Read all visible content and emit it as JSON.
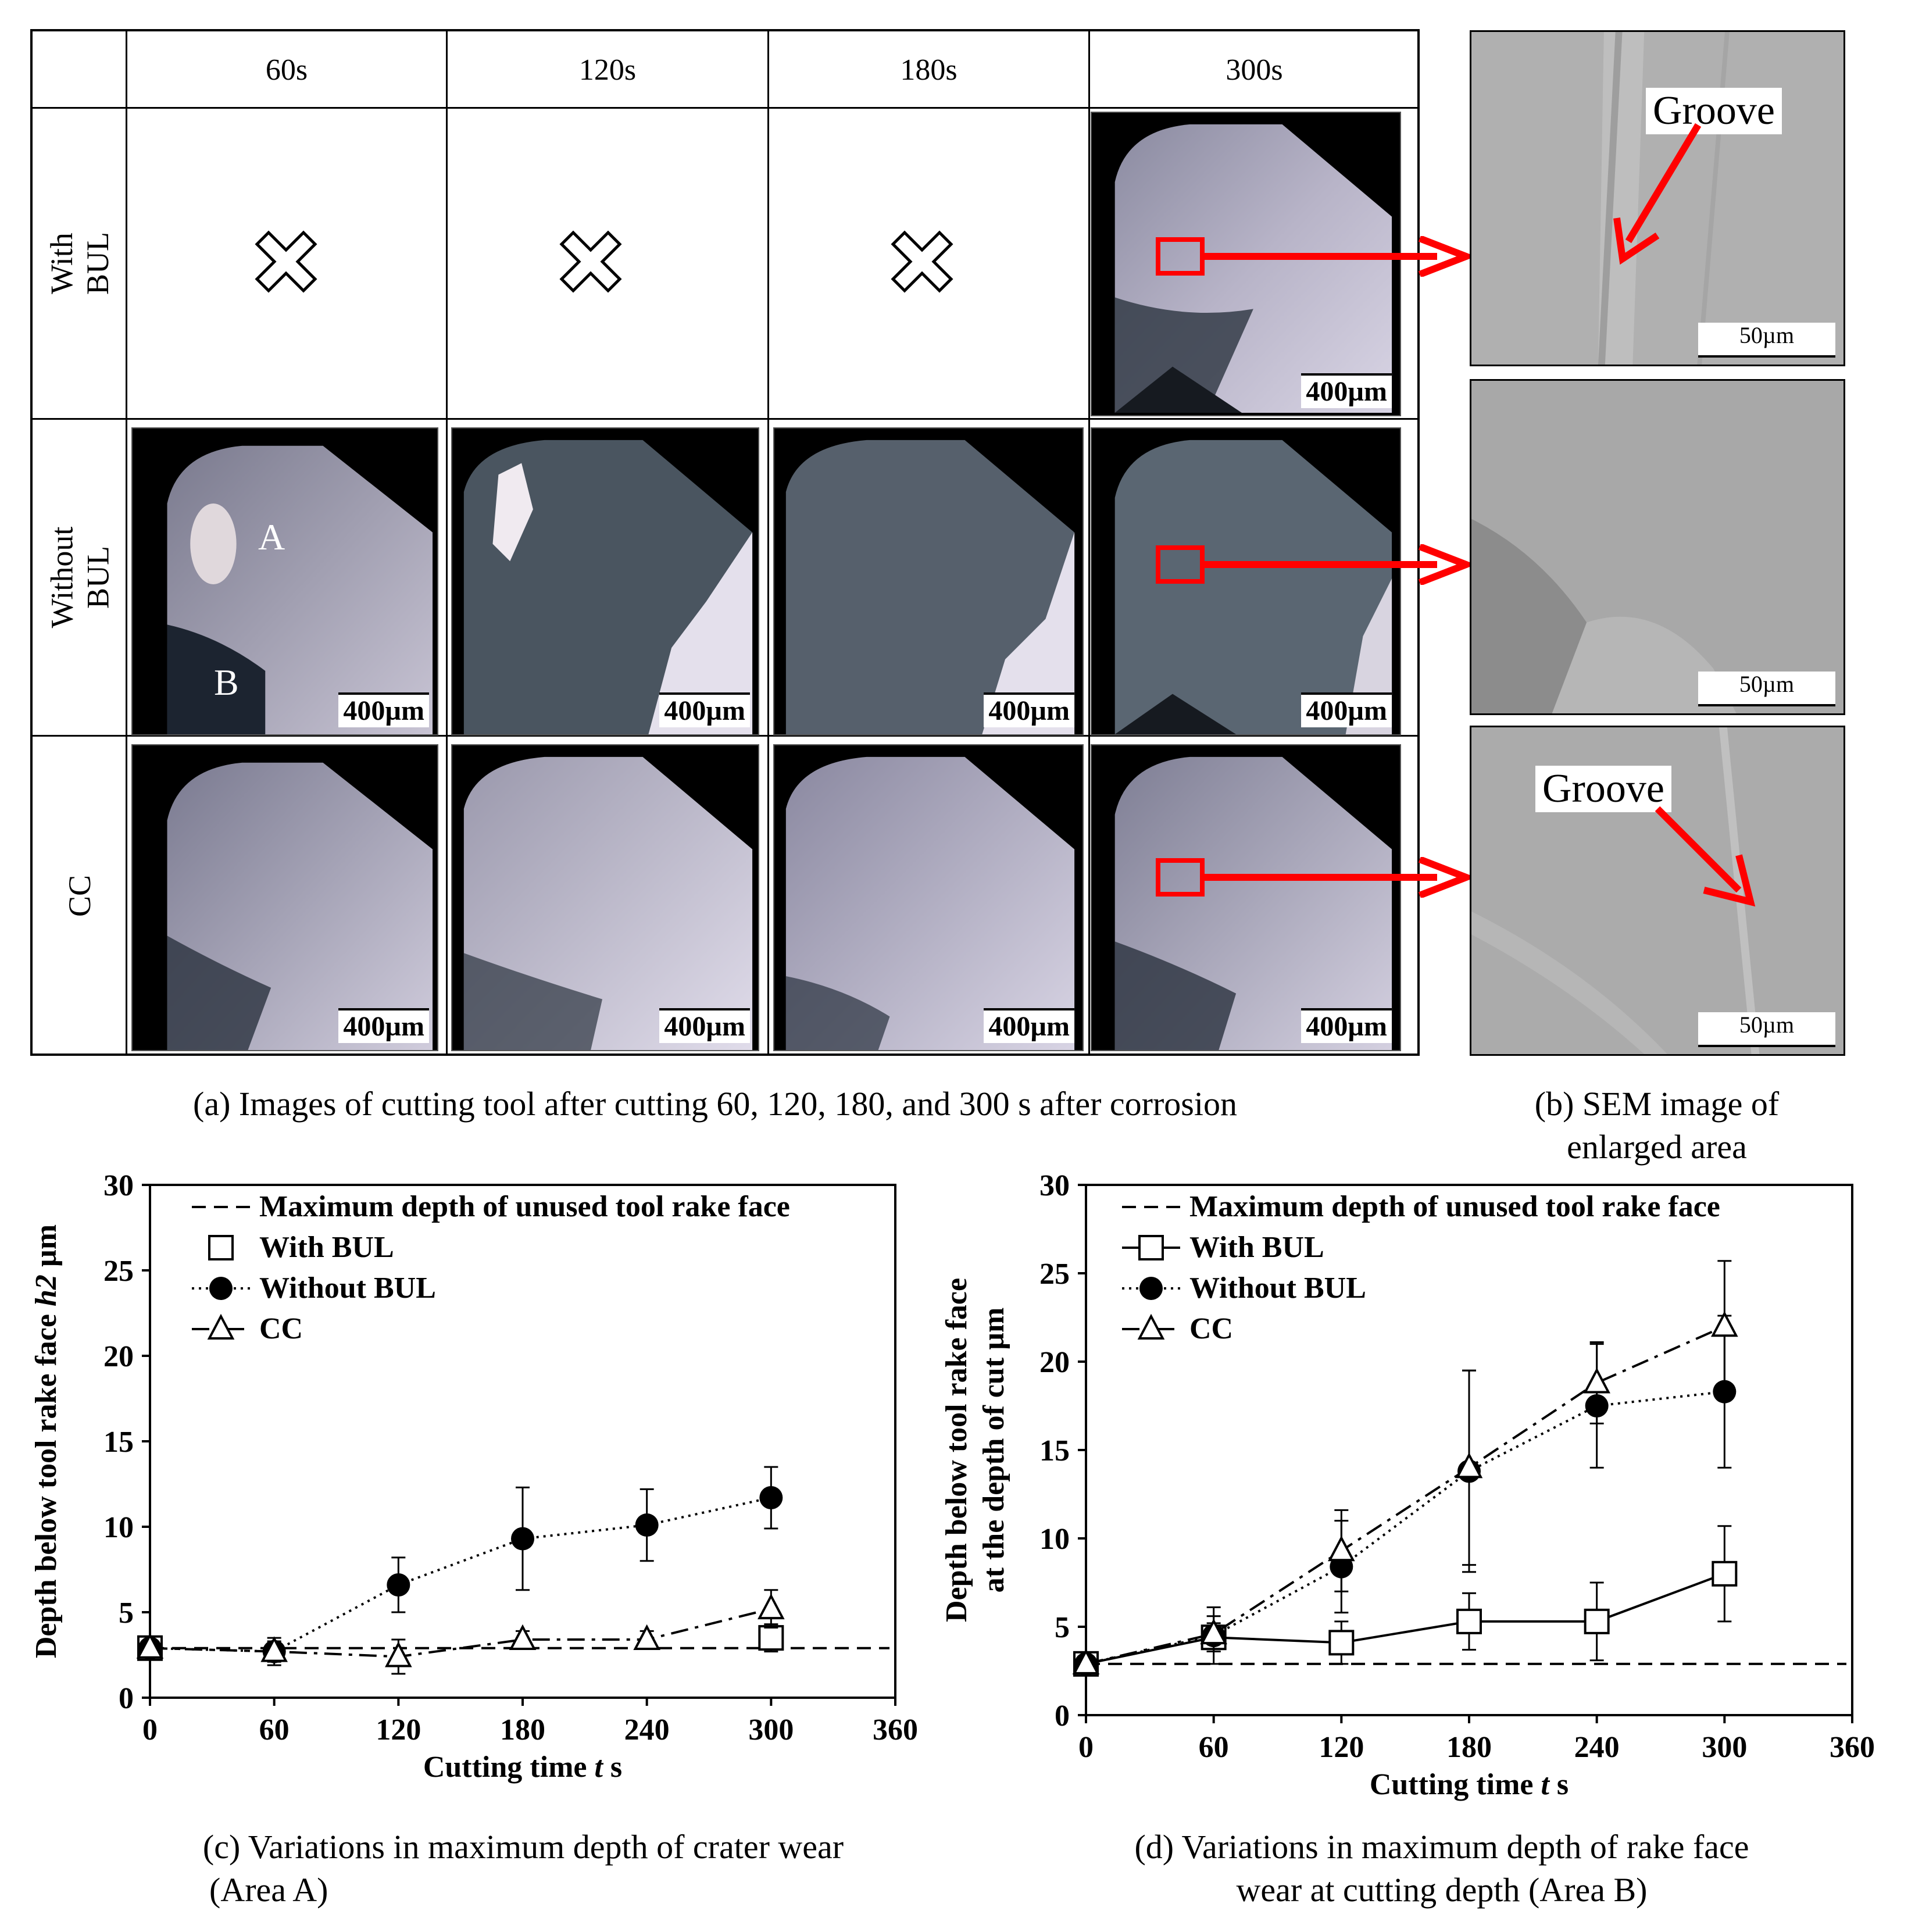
{
  "panel_a": {
    "columns": [
      "60s",
      "120s",
      "180s",
      "300s"
    ],
    "rows": [
      "With\nBUL",
      "Without\nBUL",
      "CC"
    ],
    "scale_label": "400µm",
    "zone_a_label": "A",
    "zone_b_label": "B",
    "caption": "(a) Images of cutting tool after cutting 60, 120, 180, and 300 s after corrosion"
  },
  "panel_b": {
    "scale_label": "50µm",
    "groove_label": "Groove",
    "caption_line1": "(b) SEM image of",
    "caption_line2": "enlarged area"
  },
  "colors": {
    "highlight": "#ff0000"
  },
  "chart_data": [
    {
      "type": "line",
      "ylabel": "Depth below tool rake face h2 µm",
      "ylabel_plain": "Depth below tool rake face ",
      "ylabel_italic": "h2",
      "ylabel_unit": " µm",
      "xlabel_prefix": "Cutting time ",
      "xlabel_italic": "t",
      "xlabel_suffix": " s",
      "xlim": [
        0,
        360
      ],
      "ylim": [
        0,
        30
      ],
      "xticks": [
        0,
        60,
        120,
        180,
        240,
        300,
        360
      ],
      "yticks": [
        0,
        5,
        10,
        15,
        20,
        25,
        30
      ],
      "legend_position": "top",
      "reference_value": 2.9,
      "series": [
        {
          "name": "Maximum depth of unused tool rake face",
          "style": "dashed",
          "marker": "none"
        },
        {
          "name": "With BUL",
          "style": "none",
          "marker": "open-square",
          "x": [
            0,
            300
          ],
          "y": [
            2.9,
            3.5
          ],
          "err": [
            0,
            0.8
          ]
        },
        {
          "name": "Without BUL",
          "style": "dotted",
          "marker": "filled-circle",
          "x": [
            0,
            60,
            120,
            180,
            240,
            300
          ],
          "y": [
            2.9,
            2.7,
            6.6,
            9.3,
            10.1,
            11.7
          ],
          "err": [
            0,
            0.8,
            1.6,
            3.0,
            2.1,
            1.8
          ]
        },
        {
          "name": "CC",
          "style": "dash-dot",
          "marker": "open-triangle",
          "x": [
            0,
            60,
            120,
            180,
            240,
            300
          ],
          "y": [
            2.9,
            2.7,
            2.4,
            3.4,
            3.4,
            5.2
          ],
          "err": [
            0,
            0.6,
            1.0,
            0.5,
            0.5,
            1.1
          ]
        }
      ],
      "caption_line1": "(c) Variations in maximum depth of crater wear",
      "caption_line2": "(Area A)"
    },
    {
      "type": "line",
      "ylabel_line1": "Depth below tool rake face",
      "ylabel_line2": "at the depth of cut µm",
      "xlabel_prefix": "Cutting time ",
      "xlabel_italic": "t",
      "xlabel_suffix": " s",
      "xlim": [
        0,
        360
      ],
      "ylim": [
        0,
        30
      ],
      "xticks": [
        0,
        60,
        120,
        180,
        240,
        300,
        360
      ],
      "yticks": [
        0,
        5,
        10,
        15,
        20,
        25,
        30
      ],
      "legend_position": "top",
      "reference_value": 2.9,
      "series": [
        {
          "name": "Maximum depth of unused tool rake face",
          "style": "dashed",
          "marker": "none"
        },
        {
          "name": "With BUL",
          "style": "solid",
          "marker": "open-square",
          "x": [
            0,
            60,
            120,
            180,
            240,
            300
          ],
          "y": [
            2.9,
            4.4,
            4.1,
            5.3,
            5.3,
            8.0
          ],
          "err": [
            0,
            0.8,
            1.2,
            1.6,
            2.2,
            2.7
          ]
        },
        {
          "name": "Without BUL",
          "style": "dotted",
          "marker": "filled-circle",
          "x": [
            0,
            60,
            120,
            180,
            240,
            300
          ],
          "y": [
            2.9,
            4.5,
            8.4,
            13.8,
            17.5,
            18.3
          ],
          "err": [
            0,
            1.6,
            2.6,
            5.7,
            3.5,
            4.3
          ]
        },
        {
          "name": "CC",
          "style": "dash-dot",
          "marker": "open-triangle",
          "x": [
            0,
            60,
            120,
            180,
            240,
            300
          ],
          "y": [
            2.9,
            4.6,
            9.3,
            14.0,
            18.8,
            22.0
          ],
          "err": [
            0,
            1.0,
            2.3,
            5.5,
            2.3,
            3.7
          ]
        }
      ],
      "caption_line1": "(d) Variations in maximum depth of rake face",
      "caption_line2": "wear at cutting depth (Area B)"
    }
  ]
}
